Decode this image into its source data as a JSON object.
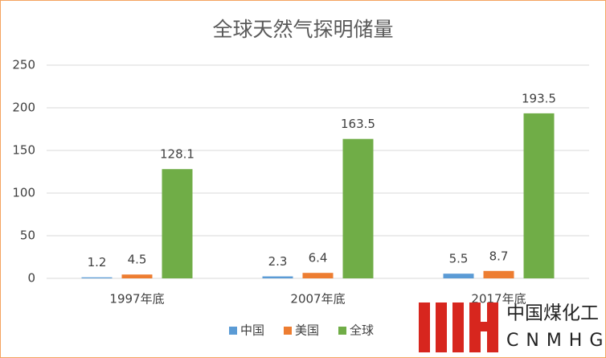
{
  "chart_data": {
    "type": "bar",
    "title": "全球天然气探明储量",
    "categories": [
      "1997年底",
      "2007年底",
      "2017年底"
    ],
    "series": [
      {
        "name": "中国",
        "color": "#5b9bd5",
        "values": [
          1.2,
          2.3,
          5.5
        ]
      },
      {
        "name": "美国",
        "color": "#ed7d31",
        "values": [
          4.5,
          6.4,
          8.7
        ]
      },
      {
        "name": "全球",
        "color": "#70ad47",
        "values": [
          128.1,
          163.5,
          193.5
        ]
      }
    ],
    "ylim": [
      0,
      250
    ],
    "yticks": [
      0,
      50,
      100,
      150,
      200,
      250
    ],
    "grid": true,
    "legend": "bottom"
  },
  "watermark": {
    "name": "中国煤化工",
    "code": "CNMHG"
  }
}
